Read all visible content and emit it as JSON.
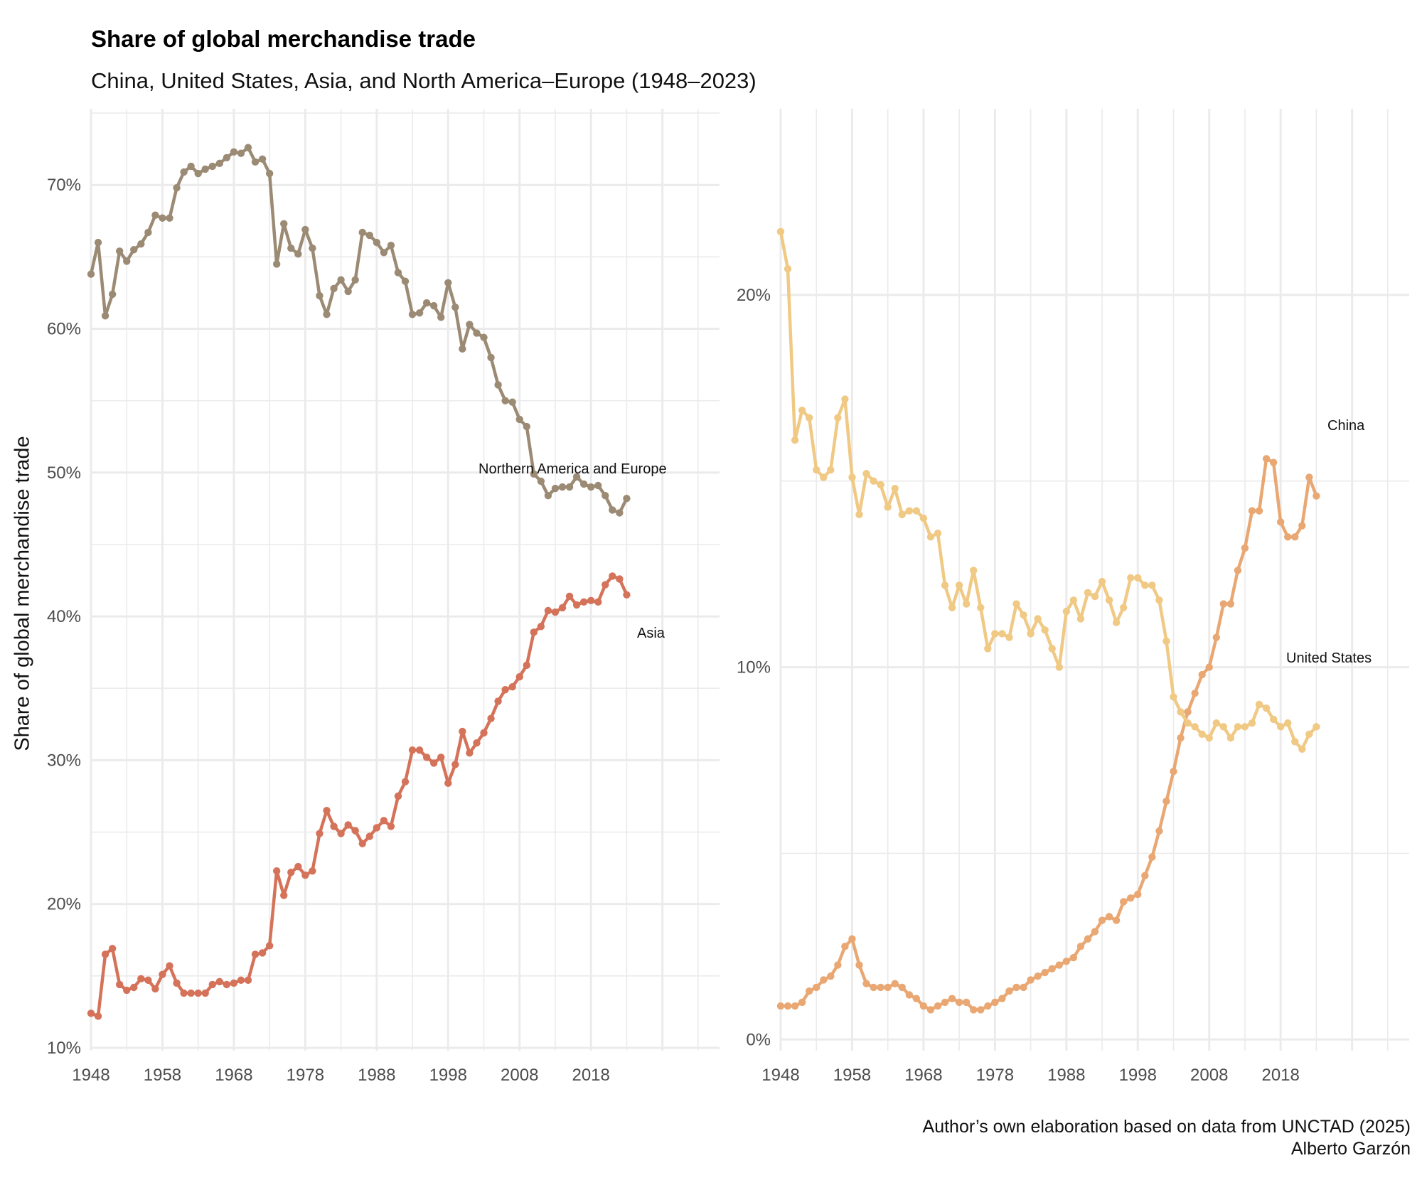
{
  "title": "Share of global merchandise trade",
  "subtitle": "China, United States, Asia, and North America–Europe (1948–2023)",
  "ylabel": "Share of global merchandise trade",
  "caption": {
    "line1": "Author’s own elaboration based on data from UNCTAD (2025)",
    "line2": "Alberto Garzón"
  },
  "colors": {
    "north_america_europe": "#9c8b74",
    "asia": "#d5735a",
    "china": "#e9a873",
    "united_states": "#f0c985",
    "grid": "#ebebeb"
  },
  "chart_data": [
    {
      "type": "line",
      "panel": "left",
      "x_ticks": [
        1948,
        1958,
        1968,
        1978,
        1988,
        1998,
        2008,
        2018
      ],
      "y_ticks": [
        10,
        20,
        30,
        40,
        50,
        60,
        70
      ],
      "y_tick_labels": [
        "10%",
        "20%",
        "30%",
        "40%",
        "50%",
        "60%",
        "70%"
      ],
      "xlim": [
        1948,
        2036
      ],
      "ylim": [
        9.8,
        75.3
      ],
      "grid": true,
      "x": [
        1948,
        1949,
        1950,
        1951,
        1952,
        1953,
        1954,
        1955,
        1956,
        1957,
        1958,
        1959,
        1960,
        1961,
        1962,
        1963,
        1964,
        1965,
        1966,
        1967,
        1968,
        1969,
        1970,
        1971,
        1972,
        1973,
        1974,
        1975,
        1976,
        1977,
        1978,
        1979,
        1980,
        1981,
        1982,
        1983,
        1984,
        1985,
        1986,
        1987,
        1988,
        1989,
        1990,
        1991,
        1992,
        1993,
        1994,
        1995,
        1996,
        1997,
        1998,
        1999,
        2000,
        2001,
        2002,
        2003,
        2004,
        2005,
        2006,
        2007,
        2008,
        2009,
        2010,
        2011,
        2012,
        2013,
        2014,
        2015,
        2016,
        2017,
        2018,
        2019,
        2020,
        2021,
        2022,
        2023
      ],
      "series": [
        {
          "name": "Northern America and Europe",
          "values": [
            63.8,
            66.0,
            60.9,
            62.4,
            65.4,
            64.7,
            65.5,
            65.9,
            66.7,
            67.9,
            67.7,
            67.7,
            69.8,
            70.9,
            71.3,
            70.8,
            71.1,
            71.3,
            71.5,
            71.9,
            72.3,
            72.2,
            72.6,
            71.6,
            71.8,
            70.8,
            64.5,
            67.3,
            65.6,
            65.2,
            66.9,
            65.6,
            62.3,
            61.0,
            62.8,
            63.4,
            62.6,
            63.4,
            66.7,
            66.5,
            66.0,
            65.3,
            65.8,
            63.9,
            63.3,
            61.0,
            61.1,
            61.8,
            61.6,
            60.8,
            63.2,
            61.5,
            58.6,
            60.3,
            59.7,
            59.4,
            58.0,
            56.1,
            55.0,
            54.9,
            53.7,
            53.2,
            49.9,
            49.4,
            48.4,
            48.9,
            49.0,
            49.0,
            49.7,
            49.2,
            49.0,
            49.1,
            48.4,
            47.4,
            47.2,
            48.2
          ]
        },
        {
          "name": "Asia",
          "values": [
            12.4,
            12.2,
            16.5,
            16.9,
            14.4,
            14.0,
            14.2,
            14.8,
            14.7,
            14.1,
            15.1,
            15.7,
            14.5,
            13.8,
            13.8,
            13.8,
            13.8,
            14.4,
            14.6,
            14.4,
            14.5,
            14.7,
            14.7,
            16.5,
            16.6,
            17.1,
            22.3,
            20.6,
            22.2,
            22.6,
            22.0,
            22.3,
            24.9,
            26.5,
            25.4,
            24.9,
            25.5,
            25.1,
            24.2,
            24.7,
            25.3,
            25.8,
            25.4,
            27.5,
            28.5,
            30.7,
            30.7,
            30.2,
            29.8,
            30.2,
            28.4,
            29.7,
            32.0,
            30.5,
            31.2,
            31.9,
            32.9,
            34.1,
            34.9,
            35.1,
            35.8,
            36.6,
            38.9,
            39.3,
            40.4,
            40.3,
            40.6,
            41.4,
            40.8,
            41.0,
            41.1,
            41.0,
            42.2,
            42.8,
            42.6,
            41.5
          ]
        }
      ]
    },
    {
      "type": "line",
      "panel": "right",
      "x_ticks": [
        1948,
        1958,
        1968,
        1978,
        1988,
        1998,
        2008,
        2018
      ],
      "y_ticks": [
        0,
        10,
        20
      ],
      "y_tick_labels": [
        "0%",
        "10%",
        "20%"
      ],
      "xlim": [
        1948,
        2036
      ],
      "ylim": [
        -0.3,
        25.0
      ],
      "grid": true,
      "x": [
        1948,
        1949,
        1950,
        1951,
        1952,
        1953,
        1954,
        1955,
        1956,
        1957,
        1958,
        1959,
        1960,
        1961,
        1962,
        1963,
        1964,
        1965,
        1966,
        1967,
        1968,
        1969,
        1970,
        1971,
        1972,
        1973,
        1974,
        1975,
        1976,
        1977,
        1978,
        1979,
        1980,
        1981,
        1982,
        1983,
        1984,
        1985,
        1986,
        1987,
        1988,
        1989,
        1990,
        1991,
        1992,
        1993,
        1994,
        1995,
        1996,
        1997,
        1998,
        1999,
        2000,
        2001,
        2002,
        2003,
        2004,
        2005,
        2006,
        2007,
        2008,
        2009,
        2010,
        2011,
        2012,
        2013,
        2014,
        2015,
        2016,
        2017,
        2018,
        2019,
        2020,
        2021,
        2022,
        2023
      ],
      "series": [
        {
          "name": "China",
          "values": [
            0.9,
            0.9,
            0.9,
            1.0,
            1.3,
            1.4,
            1.6,
            1.7,
            2.0,
            2.5,
            2.7,
            2.0,
            1.5,
            1.4,
            1.4,
            1.4,
            1.5,
            1.4,
            1.2,
            1.1,
            0.9,
            0.8,
            0.9,
            1.0,
            1.1,
            1.0,
            1.0,
            0.8,
            0.8,
            0.9,
            1.0,
            1.1,
            1.3,
            1.4,
            1.4,
            1.6,
            1.7,
            1.8,
            1.9,
            2.0,
            2.1,
            2.2,
            2.5,
            2.7,
            2.9,
            3.2,
            3.3,
            3.2,
            3.7,
            3.8,
            3.9,
            4.4,
            4.9,
            5.6,
            6.4,
            7.2,
            8.1,
            8.8,
            9.3,
            9.8,
            10.0,
            10.8,
            11.7,
            11.7,
            12.6,
            13.2,
            14.2,
            14.2,
            15.6,
            15.5,
            13.9,
            13.5,
            13.5,
            13.8,
            15.1,
            14.6
          ]
        },
        {
          "name": "United States",
          "values": [
            21.7,
            20.7,
            16.1,
            16.9,
            16.7,
            15.3,
            15.1,
            15.3,
            16.7,
            17.2,
            15.1,
            14.1,
            15.2,
            15.0,
            14.9,
            14.3,
            14.8,
            14.1,
            14.2,
            14.2,
            14.0,
            13.5,
            13.6,
            12.2,
            11.6,
            12.2,
            11.7,
            12.6,
            11.6,
            10.5,
            10.9,
            10.9,
            10.8,
            11.7,
            11.4,
            10.9,
            11.3,
            11.0,
            10.5,
            10.0,
            11.5,
            11.8,
            11.3,
            12.0,
            11.9,
            12.3,
            11.8,
            11.2,
            11.6,
            12.4,
            12.4,
            12.2,
            12.2,
            11.8,
            10.7,
            9.2,
            8.8,
            8.5,
            8.4,
            8.2,
            8.1,
            8.5,
            8.4,
            8.1,
            8.4,
            8.4,
            8.5,
            9.0,
            8.9,
            8.6,
            8.4,
            8.5,
            8.0,
            7.8,
            8.2,
            8.4
          ]
        }
      ]
    }
  ],
  "panels": {
    "left": {
      "x_tick_labels": [
        "1948",
        "1958",
        "1968",
        "1978",
        "1988",
        "1998",
        "2008",
        "2018"
      ],
      "y_tick_labels": [
        "10%",
        "20%",
        "30%",
        "40%",
        "50%",
        "60%",
        "70%"
      ],
      "annotations": [
        "Northern America and Europe",
        "Asia"
      ]
    },
    "right": {
      "x_tick_labels": [
        "1948",
        "1958",
        "1968",
        "1978",
        "1988",
        "1998",
        "2008",
        "2018"
      ],
      "y_tick_labels": [
        "0%",
        "10%",
        "20%"
      ],
      "annotations": [
        "China",
        "United States"
      ]
    }
  }
}
